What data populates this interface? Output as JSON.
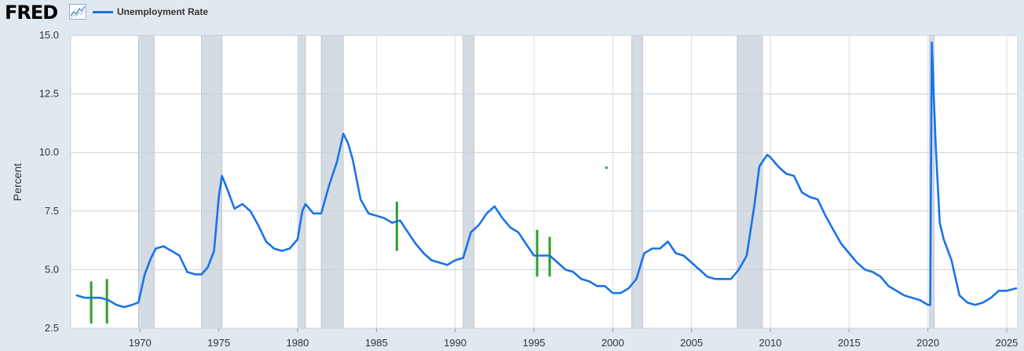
{
  "header": {
    "logo_text": "FRED",
    "chart_icon": "line-chart-icon",
    "series_label": "Unemployment Rate"
  },
  "colors": {
    "series": "#1a73e8",
    "recession": "#d5dbe2",
    "annotation": "#2ca02c",
    "plot_bg": "#ffffff",
    "page_bg": "#e1e9f0"
  },
  "chart_data": {
    "type": "line",
    "title": "",
    "xlabel": "",
    "ylabel": "Percent",
    "xlim": [
      1965.6,
      2025.7
    ],
    "ylim": [
      2.5,
      15.0
    ],
    "y_ticks": [
      "2.5",
      "5.0",
      "7.5",
      "10.0",
      "12.5",
      "15.0"
    ],
    "x_ticks": [
      "1970",
      "1975",
      "1980",
      "1985",
      "1990",
      "1995",
      "2000",
      "2005",
      "2010",
      "2015",
      "2020",
      "2025"
    ],
    "grid": true,
    "legend_position": "top-left",
    "recessions": [
      [
        1969.9,
        1970.9
      ],
      [
        1973.9,
        1975.2
      ],
      [
        1980.0,
        1980.5
      ],
      [
        1981.5,
        1982.9
      ],
      [
        1990.5,
        1991.2
      ],
      [
        2001.2,
        2001.9
      ],
      [
        2007.9,
        2009.5
      ],
      [
        2020.1,
        2020.4
      ]
    ],
    "series": [
      {
        "name": "Unemployment Rate",
        "x": [
          1966.0,
          1966.5,
          1967.0,
          1967.5,
          1968.0,
          1968.5,
          1969.0,
          1969.5,
          1969.9,
          1970.3,
          1970.7,
          1971.0,
          1971.5,
          1972.0,
          1972.5,
          1973.0,
          1973.5,
          1973.9,
          1974.3,
          1974.7,
          1975.0,
          1975.2,
          1975.5,
          1976.0,
          1976.5,
          1977.0,
          1977.5,
          1978.0,
          1978.5,
          1979.0,
          1979.5,
          1980.0,
          1980.3,
          1980.5,
          1981.0,
          1981.5,
          1982.0,
          1982.5,
          1982.9,
          1983.2,
          1983.5,
          1984.0,
          1984.5,
          1985.0,
          1985.5,
          1986.0,
          1986.5,
          1987.0,
          1987.5,
          1988.0,
          1988.5,
          1989.0,
          1989.5,
          1990.0,
          1990.5,
          1991.0,
          1991.5,
          1992.0,
          1992.5,
          1993.0,
          1993.5,
          1994.0,
          1994.5,
          1995.0,
          1995.5,
          1996.0,
          1996.5,
          1997.0,
          1997.5,
          1998.0,
          1998.5,
          1999.0,
          1999.5,
          2000.0,
          2000.5,
          2001.0,
          2001.5,
          2002.0,
          2002.5,
          2003.0,
          2003.5,
          2004.0,
          2004.5,
          2005.0,
          2005.5,
          2006.0,
          2006.5,
          2007.0,
          2007.5,
          2008.0,
          2008.5,
          2009.0,
          2009.3,
          2009.8,
          2010.0,
          2010.5,
          2011.0,
          2011.5,
          2012.0,
          2012.5,
          2013.0,
          2013.5,
          2014.0,
          2014.5,
          2015.0,
          2015.5,
          2016.0,
          2016.5,
          2017.0,
          2017.5,
          2018.0,
          2018.5,
          2019.0,
          2019.5,
          2020.0,
          2020.15,
          2020.25,
          2020.33,
          2020.5,
          2020.75,
          2021.0,
          2021.5,
          2022.0,
          2022.5,
          2023.0,
          2023.5,
          2024.0,
          2024.5,
          2025.0,
          2025.6
        ],
        "values": [
          3.9,
          3.8,
          3.8,
          3.8,
          3.7,
          3.5,
          3.4,
          3.5,
          3.6,
          4.8,
          5.5,
          5.9,
          6.0,
          5.8,
          5.6,
          4.9,
          4.8,
          4.8,
          5.1,
          5.8,
          8.1,
          9.0,
          8.5,
          7.6,
          7.8,
          7.5,
          6.9,
          6.2,
          5.9,
          5.8,
          5.9,
          6.3,
          7.5,
          7.8,
          7.4,
          7.4,
          8.6,
          9.6,
          10.8,
          10.4,
          9.7,
          8.0,
          7.4,
          7.3,
          7.2,
          7.0,
          7.1,
          6.6,
          6.1,
          5.7,
          5.4,
          5.3,
          5.2,
          5.4,
          5.5,
          6.6,
          6.9,
          7.4,
          7.7,
          7.2,
          6.8,
          6.6,
          6.1,
          5.6,
          5.6,
          5.6,
          5.3,
          5.0,
          4.9,
          4.6,
          4.5,
          4.3,
          4.3,
          4.0,
          4.0,
          4.2,
          4.6,
          5.7,
          5.9,
          5.9,
          6.2,
          5.7,
          5.6,
          5.3,
          5.0,
          4.7,
          4.6,
          4.6,
          4.6,
          5.0,
          5.6,
          7.8,
          9.4,
          9.9,
          9.8,
          9.4,
          9.1,
          9.0,
          8.3,
          8.1,
          8.0,
          7.3,
          6.7,
          6.1,
          5.7,
          5.3,
          5.0,
          4.9,
          4.7,
          4.3,
          4.1,
          3.9,
          3.8,
          3.7,
          3.5,
          3.5,
          14.7,
          13.2,
          10.2,
          7.0,
          6.3,
          5.4,
          3.9,
          3.6,
          3.5,
          3.6,
          3.8,
          4.1,
          4.1,
          4.2
        ]
      }
    ],
    "annotations": [
      {
        "x": 1966.9,
        "y_low": 2.7,
        "y_high": 4.5
      },
      {
        "x": 1967.9,
        "y_low": 2.7,
        "y_high": 4.6
      },
      {
        "x": 1986.3,
        "y_low": 5.8,
        "y_high": 7.9
      },
      {
        "x": 1995.2,
        "y_low": 4.7,
        "y_high": 6.7
      },
      {
        "x": 1996.0,
        "y_low": 4.7,
        "y_high": 6.4
      },
      {
        "x": 1999.6,
        "y_low": 9.3,
        "y_high": 9.4
      }
    ]
  }
}
